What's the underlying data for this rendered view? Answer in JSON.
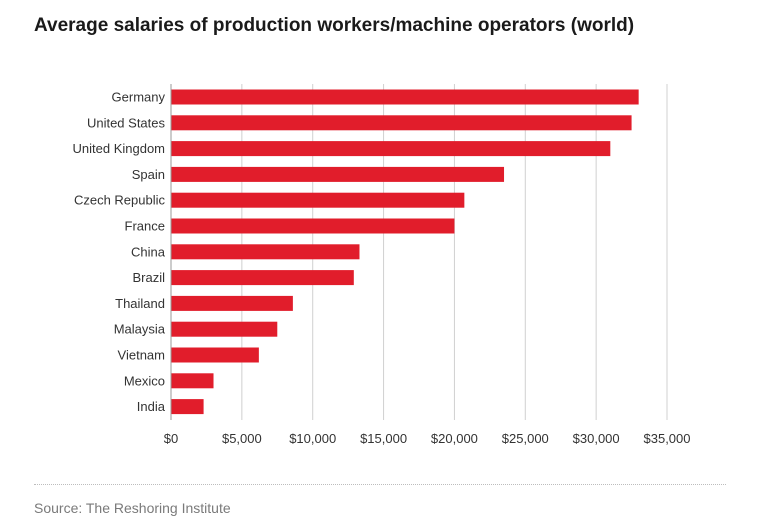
{
  "chart_data": {
    "type": "bar",
    "orientation": "horizontal",
    "title": "Average salaries of production workers/machine operators (world)",
    "categories": [
      "Germany",
      "United States",
      "United Kingdom",
      "Spain",
      "Czech Republic",
      "France",
      "China",
      "Brazil",
      "Thailand",
      "Malaysia",
      "Vietnam",
      "Mexico",
      "India"
    ],
    "values": [
      33000,
      32500,
      31000,
      23500,
      20700,
      20000,
      13300,
      12900,
      8600,
      7500,
      6200,
      3000,
      2300
    ],
    "xlim": [
      0,
      35000
    ],
    "xticks": [
      0,
      5000,
      10000,
      15000,
      20000,
      25000,
      30000,
      35000
    ],
    "xtick_labels": [
      "$0",
      "$5,000",
      "$10,000",
      "$15,000",
      "$20,000",
      "$25,000",
      "$30,000",
      "$35,000"
    ],
    "xlabel": "",
    "ylabel": "",
    "grid": "vertical",
    "bar_color": "#e11d2b",
    "grid_color": "#d0d0d0",
    "label_color": "#333333"
  },
  "source": "Source: The Reshoring Institute"
}
